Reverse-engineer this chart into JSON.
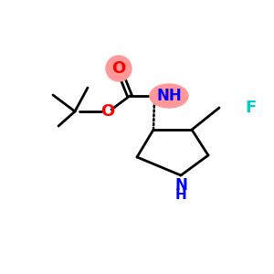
{
  "bg_color": "#ffffff",
  "colors": {
    "O": "#ff0000",
    "N": "#0000ff",
    "F": "#00cccc",
    "C": "#000000",
    "highlight": "#ff9999"
  },
  "figsize": [
    3.0,
    3.0
  ],
  "dpi": 100
}
